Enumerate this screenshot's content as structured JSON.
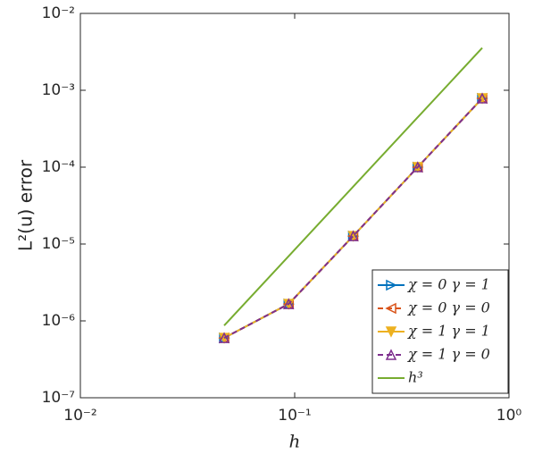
{
  "chart_data": {
    "type": "line",
    "xlabel": "h",
    "ylabel": "L²(u) error",
    "xscale": "log",
    "yscale": "log",
    "xlim": [
      0.01,
      1
    ],
    "ylim": [
      1e-07,
      0.01
    ],
    "xticks": [
      {
        "value": 0.01,
        "label": "10⁻²"
      },
      {
        "value": 0.1,
        "label": "10⁻¹"
      },
      {
        "value": 1,
        "label": "10⁰"
      }
    ],
    "yticks": [
      {
        "value": 1e-07,
        "label": "10⁻⁷"
      },
      {
        "value": 1e-06,
        "label": "10⁻⁶"
      },
      {
        "value": 1e-05,
        "label": "10⁻⁵"
      },
      {
        "value": 0.0001,
        "label": "10⁻⁴"
      },
      {
        "value": 0.001,
        "label": "10⁻³"
      },
      {
        "value": 0.01,
        "label": "10⁻²"
      }
    ],
    "legend": "lower-right",
    "x": [
      0.046875,
      0.09375,
      0.1875,
      0.375,
      0.75
    ],
    "series": [
      {
        "name": "χ = 0  γ = 1",
        "color": "#0072BD",
        "marker": "right",
        "dash": false,
        "values": [
          6e-07,
          1.66e-06,
          1.27e-05,
          0.0001,
          0.000785
        ]
      },
      {
        "name": "χ = 0  γ = 0",
        "color": "#D95319",
        "marker": "left",
        "dash": true,
        "values": [
          6e-07,
          1.66e-06,
          1.27e-05,
          0.0001,
          0.000785
        ]
      },
      {
        "name": "χ = 1  γ = 1",
        "color": "#EDB120",
        "marker": "down",
        "dash": false,
        "values": [
          6e-07,
          1.66e-06,
          1.27e-05,
          0.0001,
          0.000785
        ]
      },
      {
        "name": "χ = 1  γ = 0",
        "color": "#7E2F8E",
        "marker": "up",
        "dash": true,
        "values": [
          6e-07,
          1.66e-06,
          1.27e-05,
          0.0001,
          0.000785
        ]
      },
      {
        "name": "h³",
        "color": "#77AC30",
        "marker": "none",
        "dash": false,
        "values": [
          8.7e-07,
          6.96e-06,
          5.57e-05,
          0.000445,
          0.00356
        ]
      }
    ]
  }
}
